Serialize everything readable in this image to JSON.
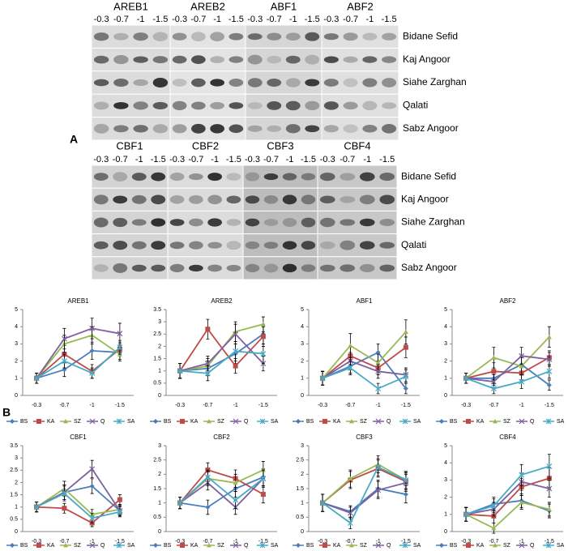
{
  "panel_labels": [
    "A",
    "B"
  ],
  "gels": [
    {
      "genes": [
        "AREB1",
        "AREB2",
        "ABF1",
        "ABF2"
      ],
      "lanes": [
        "-0.3",
        "-0.7",
        "-1",
        "-1.5"
      ],
      "rows": [
        "Bidane Sefid",
        "Kaj Angoor",
        "Siahe Zarghan",
        "Qalati",
        "Sabz Angoor"
      ]
    },
    {
      "genes": [
        "CBF1",
        "CBF2",
        "CBF3",
        "CBF4"
      ],
      "lanes": [
        "-0.3",
        "-0.7",
        "-1",
        "-1.5"
      ],
      "rows": [
        "Bidane Sefid",
        "Kaj Angoor",
        "Siahe Zarghan",
        "Qalati",
        "Sabz Angoor"
      ]
    }
  ],
  "chart_data": [
    {
      "type": "line",
      "title": "AREB1",
      "categories": [
        "-0.3",
        "-0.7",
        "-1",
        "-1.5"
      ],
      "ylim": [
        0,
        5
      ],
      "yticks": [
        0,
        1,
        2,
        3,
        4,
        5
      ],
      "series": [
        {
          "name": "BS",
          "color": "#4a7ebb",
          "values": [
            1,
            1.5,
            2.6,
            2.5
          ],
          "errors": [
            0.3,
            0.4,
            0.5,
            0.4
          ]
        },
        {
          "name": "KA",
          "color": "#be4b48",
          "values": [
            1,
            2.4,
            1.4,
            2.7
          ],
          "errors": [
            0.3,
            0.5,
            0.4,
            0.4
          ]
        },
        {
          "name": "SZ",
          "color": "#98b954",
          "values": [
            1,
            3,
            3.5,
            2.4
          ],
          "errors": [
            0.3,
            0.5,
            0.5,
            0.4
          ]
        },
        {
          "name": "Q",
          "color": "#7d60a0",
          "values": [
            1,
            3.3,
            3.9,
            3.6
          ],
          "errors": [
            0.3,
            0.6,
            0.6,
            0.6
          ]
        },
        {
          "name": "SA",
          "color": "#46aac5",
          "values": [
            1,
            2,
            1.3,
            2.8
          ],
          "errors": [
            0.3,
            0.4,
            0.3,
            0.4
          ]
        }
      ]
    },
    {
      "type": "line",
      "title": "AREB2",
      "categories": [
        "-0.3",
        "-0.7",
        "-1",
        "-1.5"
      ],
      "ylim": [
        0,
        3.5
      ],
      "yticks": [
        0,
        0.5,
        1,
        1.5,
        2,
        2.5,
        3,
        3.5
      ],
      "series": [
        {
          "name": "BS",
          "color": "#4a7ebb",
          "values": [
            1,
            1.1,
            1.7,
            2.5
          ],
          "errors": [
            0.3,
            0.3,
            0.4,
            0.4
          ]
        },
        {
          "name": "KA",
          "color": "#be4b48",
          "values": [
            1,
            2.7,
            1.2,
            2.4
          ],
          "errors": [
            0.3,
            0.4,
            0.3,
            0.4
          ]
        },
        {
          "name": "SZ",
          "color": "#98b954",
          "values": [
            1,
            1.2,
            2.6,
            2.9
          ],
          "errors": [
            0.3,
            0.3,
            0.4,
            0.3
          ]
        },
        {
          "name": "Q",
          "color": "#7d60a0",
          "values": [
            1,
            1.3,
            2.5,
            1.3
          ],
          "errors": [
            0.3,
            0.3,
            0.4,
            0.3
          ]
        },
        {
          "name": "SA",
          "color": "#46aac5",
          "values": [
            1,
            0.9,
            1.8,
            1.7
          ],
          "errors": [
            0.3,
            0.3,
            0.4,
            0.4
          ]
        }
      ]
    },
    {
      "type": "line",
      "title": "ABF1",
      "categories": [
        "-0.3",
        "-0.7",
        "-1",
        "-1.5"
      ],
      "ylim": [
        0,
        5
      ],
      "yticks": [
        0,
        1,
        2,
        3,
        4,
        5
      ],
      "series": [
        {
          "name": "BS",
          "color": "#4a7ebb",
          "values": [
            1,
            1.7,
            2.5,
            0.4
          ],
          "errors": [
            0.4,
            0.4,
            0.5,
            0.3
          ]
        },
        {
          "name": "KA",
          "color": "#be4b48",
          "values": [
            1,
            2.3,
            1.6,
            2.8
          ],
          "errors": [
            0.4,
            0.5,
            0.4,
            0.6
          ]
        },
        {
          "name": "SZ",
          "color": "#98b954",
          "values": [
            1,
            2.9,
            1.9,
            3.7
          ],
          "errors": [
            0.4,
            0.7,
            0.5,
            0.7
          ]
        },
        {
          "name": "Q",
          "color": "#7d60a0",
          "values": [
            1,
            2,
            1.4,
            1.2
          ],
          "errors": [
            0.4,
            0.5,
            0.4,
            0.4
          ]
        },
        {
          "name": "SA",
          "color": "#46aac5",
          "values": [
            1,
            1.6,
            0.4,
            1.1
          ],
          "errors": [
            0.4,
            0.4,
            0.3,
            0.4
          ]
        }
      ]
    },
    {
      "type": "line",
      "title": "ABF2",
      "categories": [
        "-0.3",
        "-0.7",
        "-1",
        "-1.5"
      ],
      "ylim": [
        0,
        5
      ],
      "yticks": [
        0,
        1,
        2,
        3,
        4,
        5
      ],
      "series": [
        {
          "name": "BS",
          "color": "#4a7ebb",
          "values": [
            1,
            1,
            1.8,
            0.6
          ],
          "errors": [
            0.3,
            0.4,
            0.5,
            0.3
          ]
        },
        {
          "name": "KA",
          "color": "#be4b48",
          "values": [
            1,
            1.4,
            1.3,
            2.2
          ],
          "errors": [
            0.3,
            0.5,
            0.4,
            0.4
          ]
        },
        {
          "name": "SZ",
          "color": "#98b954",
          "values": [
            1,
            2.2,
            1.7,
            3.4
          ],
          "errors": [
            0.3,
            0.6,
            0.5,
            0.6
          ]
        },
        {
          "name": "Q",
          "color": "#7d60a0",
          "values": [
            1,
            0.8,
            2.3,
            2.1
          ],
          "errors": [
            0.3,
            0.4,
            0.5,
            0.4
          ]
        },
        {
          "name": "SA",
          "color": "#46aac5",
          "values": [
            1,
            0.4,
            0.8,
            1.4
          ],
          "errors": [
            0.3,
            0.3,
            0.4,
            0.4
          ]
        }
      ]
    },
    {
      "type": "line",
      "title": "CBF1",
      "categories": [
        "-0.3",
        "-0.7",
        "-1",
        "-1.5"
      ],
      "ylim": [
        0,
        3.5
      ],
      "yticks": [
        0,
        0.5,
        1,
        1.5,
        2,
        2.5,
        3,
        3.5
      ],
      "series": [
        {
          "name": "BS",
          "color": "#4a7ebb",
          "values": [
            1,
            1.6,
            1.85,
            0.85
          ],
          "errors": [
            0.2,
            0.3,
            0.3,
            0.2
          ]
        },
        {
          "name": "KA",
          "color": "#be4b48",
          "values": [
            1,
            0.95,
            0.35,
            1.3
          ],
          "errors": [
            0.2,
            0.2,
            0.15,
            0.2
          ]
        },
        {
          "name": "SZ",
          "color": "#98b954",
          "values": [
            1,
            1.75,
            0.7,
            0.9
          ],
          "errors": [
            0.2,
            0.3,
            0.2,
            0.2
          ]
        },
        {
          "name": "Q",
          "color": "#7d60a0",
          "values": [
            1,
            1.6,
            2.55,
            0.85
          ],
          "errors": [
            0.2,
            0.3,
            0.35,
            0.2
          ]
        },
        {
          "name": "SA",
          "color": "#46aac5",
          "values": [
            1,
            1.55,
            0.55,
            0.8
          ],
          "errors": [
            0.2,
            0.3,
            0.2,
            0.2
          ]
        }
      ]
    },
    {
      "type": "line",
      "title": "CBF2",
      "categories": [
        "-0.3",
        "-0.7",
        "-1",
        "-1.5"
      ],
      "ylim": [
        0,
        3
      ],
      "yticks": [
        0,
        0.5,
        1,
        1.5,
        2,
        2.5,
        3
      ],
      "series": [
        {
          "name": "BS",
          "color": "#4a7ebb",
          "values": [
            1,
            0.85,
            1.5,
            1.9
          ],
          "errors": [
            0.2,
            0.25,
            0.3,
            0.3
          ]
        },
        {
          "name": "KA",
          "color": "#be4b48",
          "values": [
            1,
            2.15,
            1.85,
            1.3
          ],
          "errors": [
            0.2,
            0.25,
            0.3,
            0.3
          ]
        },
        {
          "name": "SZ",
          "color": "#98b954",
          "values": [
            1,
            1.85,
            1.7,
            2.15
          ],
          "errors": [
            0.2,
            0.25,
            0.3,
            0.3
          ]
        },
        {
          "name": "Q",
          "color": "#7d60a0",
          "values": [
            1,
            1.7,
            0.85,
            1.85
          ],
          "errors": [
            0.2,
            0.25,
            0.25,
            0.3
          ]
        },
        {
          "name": "SA",
          "color": "#46aac5",
          "values": [
            1,
            1.9,
            1.1,
            1.85
          ],
          "errors": [
            0.2,
            0.25,
            0.3,
            0.3
          ]
        }
      ]
    },
    {
      "type": "line",
      "title": "CBF3",
      "categories": [
        "-0.3",
        "-0.7",
        "-1",
        "-1.5"
      ],
      "ylim": [
        0,
        3
      ],
      "yticks": [
        0,
        0.5,
        1,
        1.5,
        2,
        2.5,
        3
      ],
      "series": [
        {
          "name": "BS",
          "color": "#4a7ebb",
          "values": [
            1,
            0.7,
            1.5,
            1.3
          ],
          "errors": [
            0.3,
            0.2,
            0.3,
            0.3
          ]
        },
        {
          "name": "KA",
          "color": "#be4b48",
          "values": [
            1,
            1.8,
            2.2,
            1.75
          ],
          "errors": [
            0.3,
            0.3,
            0.3,
            0.3
          ]
        },
        {
          "name": "SZ",
          "color": "#98b954",
          "values": [
            1,
            1.85,
            2.35,
            1.8
          ],
          "errors": [
            0.3,
            0.3,
            0.3,
            0.3
          ]
        },
        {
          "name": "Q",
          "color": "#7d60a0",
          "values": [
            1,
            0.65,
            1.45,
            1.7
          ],
          "errors": [
            0.3,
            0.2,
            0.3,
            0.3
          ]
        },
        {
          "name": "SA",
          "color": "#46aac5",
          "values": [
            1,
            0.3,
            2.25,
            1.8
          ],
          "errors": [
            0.3,
            0.2,
            0.3,
            0.3
          ]
        }
      ]
    },
    {
      "type": "line",
      "title": "CBF4",
      "categories": [
        "-0.3",
        "-0.7",
        "-1",
        "-1.5"
      ],
      "ylim": [
        0,
        5
      ],
      "yticks": [
        0,
        1,
        2,
        3,
        4,
        5
      ],
      "series": [
        {
          "name": "BS",
          "color": "#4a7ebb",
          "values": [
            1,
            1.6,
            1.8,
            1.2
          ],
          "errors": [
            0.4,
            0.4,
            0.4,
            0.4
          ]
        },
        {
          "name": "KA",
          "color": "#be4b48",
          "values": [
            1,
            0.9,
            2.6,
            3.1
          ],
          "errors": [
            0.4,
            0.4,
            0.5,
            0.6
          ]
        },
        {
          "name": "SZ",
          "color": "#98b954",
          "values": [
            1,
            0.2,
            1.7,
            1.3
          ],
          "errors": [
            0.4,
            0.3,
            0.4,
            0.4
          ]
        },
        {
          "name": "Q",
          "color": "#7d60a0",
          "values": [
            1,
            1.3,
            2.9,
            2.5
          ],
          "errors": [
            0.4,
            0.4,
            0.5,
            0.5
          ]
        },
        {
          "name": "SA",
          "color": "#46aac5",
          "values": [
            1,
            1.5,
            3.3,
            3.8
          ],
          "errors": [
            0.4,
            0.4,
            0.6,
            0.7
          ]
        }
      ]
    }
  ]
}
